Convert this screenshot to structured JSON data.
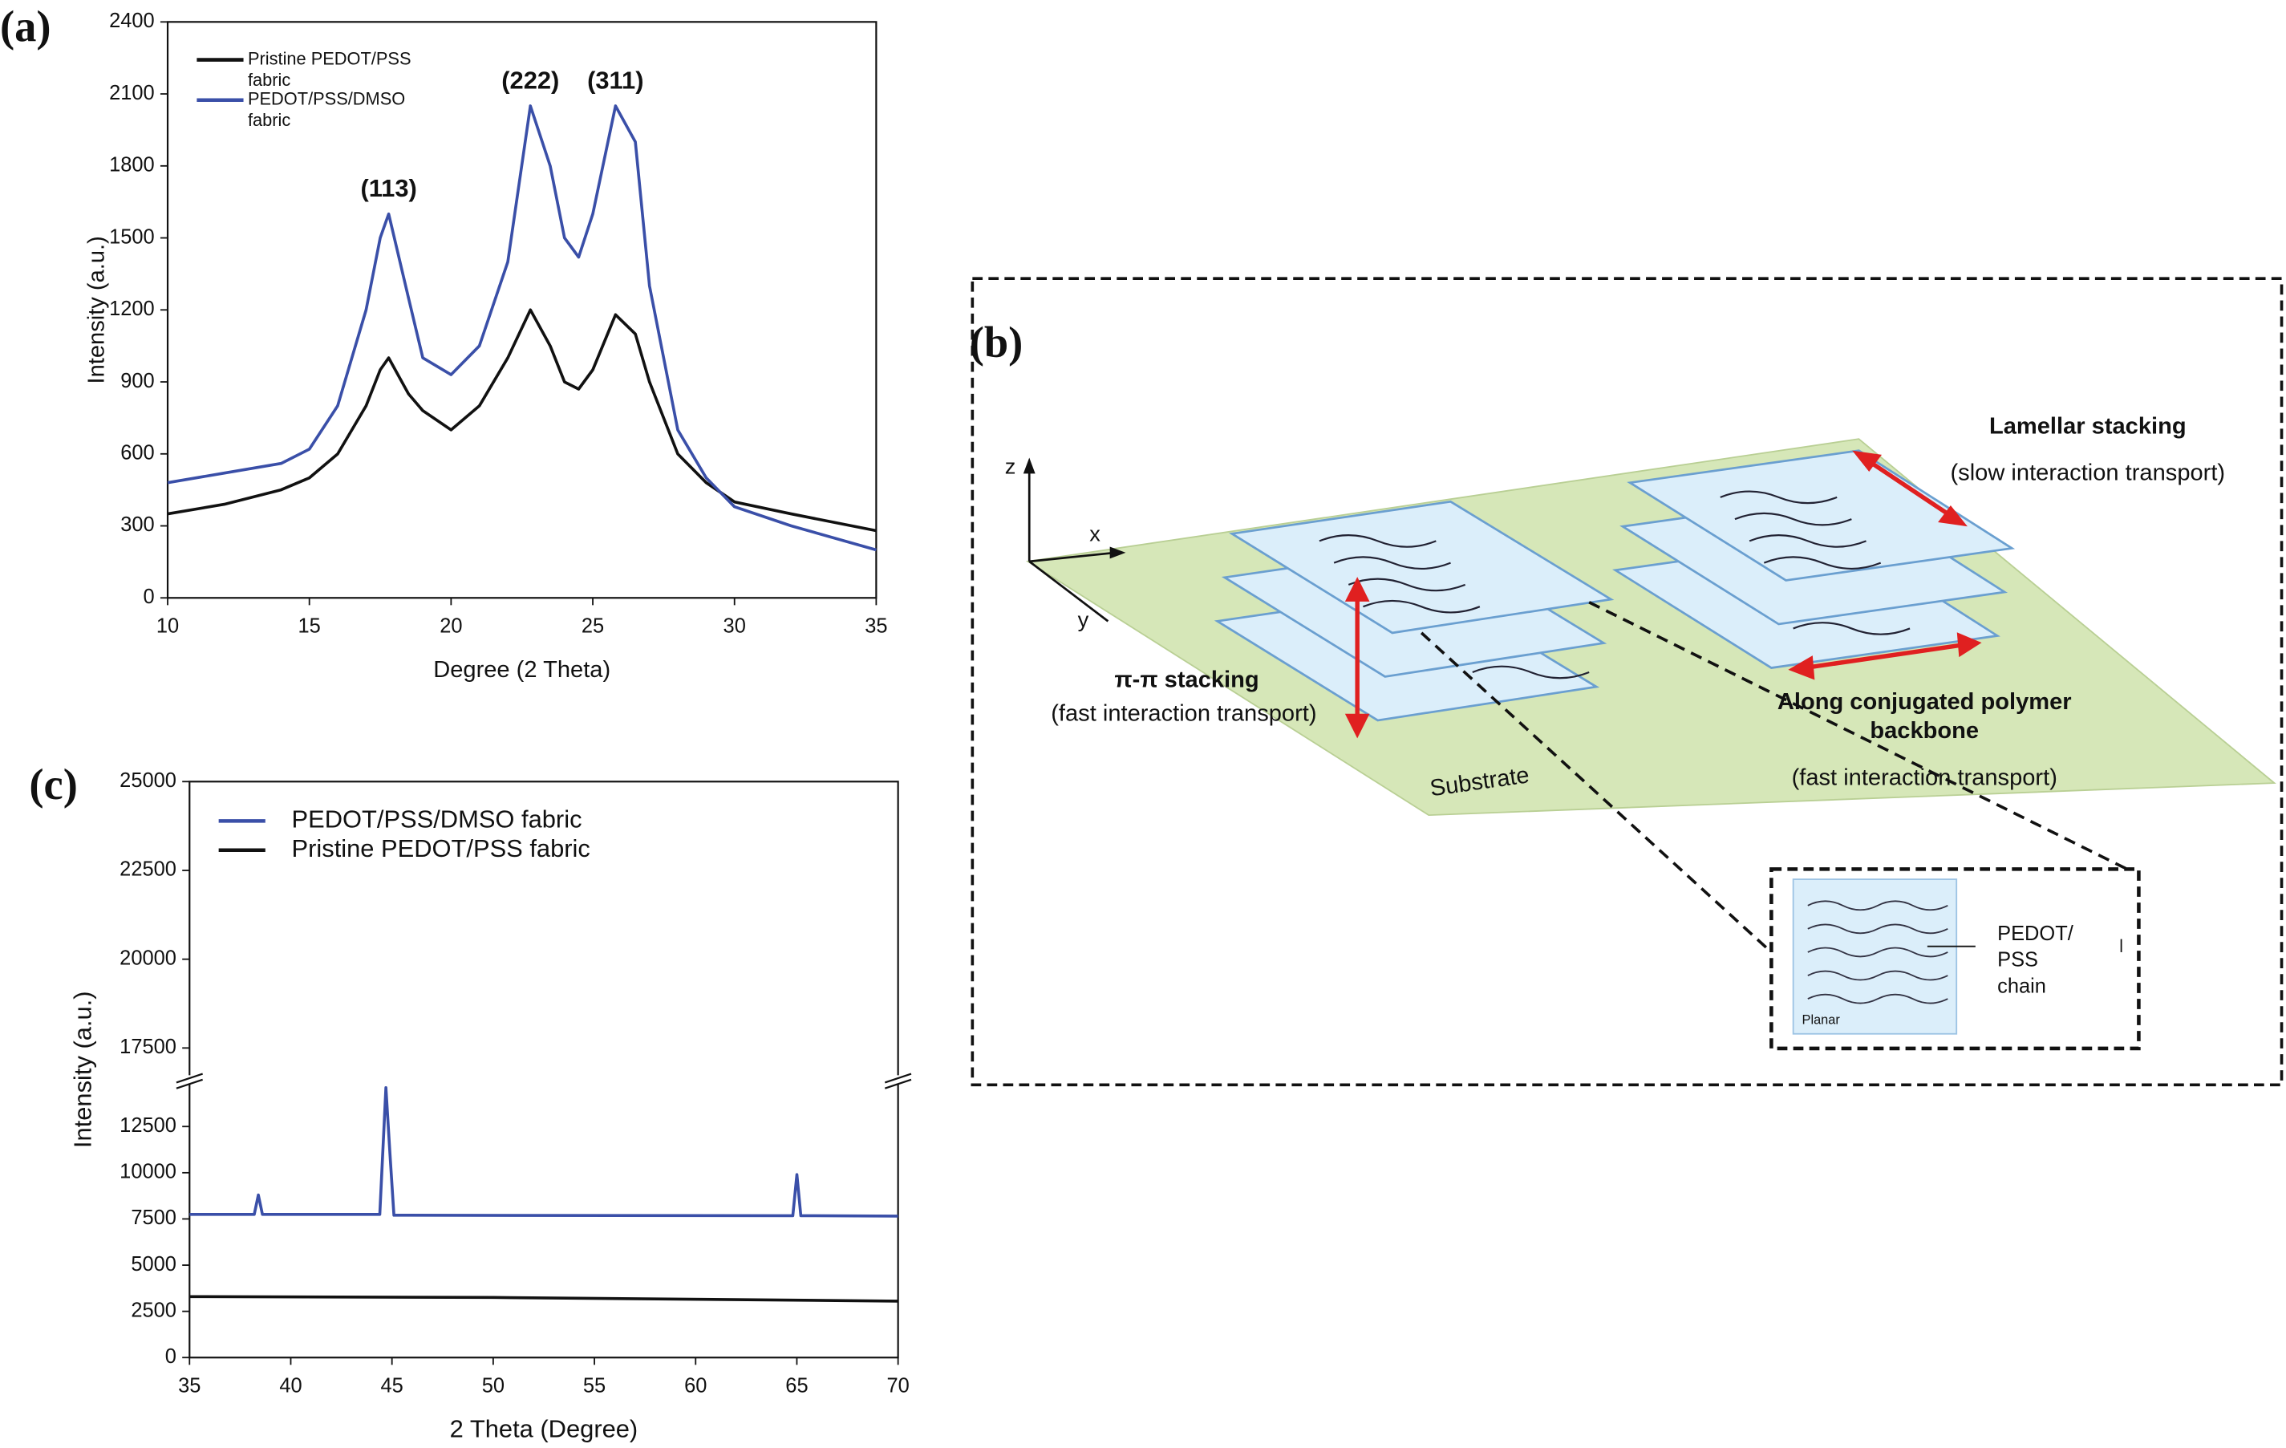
{
  "chart_data": [
    {
      "type": "line",
      "title": "(a)",
      "xlabel": "Degree (2 Theta)",
      "ylabel": "Intensity (a.u.)",
      "x": [
        10,
        12,
        14,
        15,
        16,
        17,
        17.5,
        17.8,
        18.5,
        19,
        20,
        21,
        22,
        22.8,
        23.5,
        24,
        24.5,
        25,
        25.8,
        26.5,
        27,
        28,
        29,
        30,
        32,
        35
      ],
      "series": [
        {
          "name": "Pristine PEDOT/PSS fabric",
          "color": "#111111",
          "values": [
            350,
            390,
            450,
            500,
            600,
            800,
            950,
            1000,
            850,
            780,
            700,
            800,
            1000,
            1200,
            1050,
            900,
            870,
            950,
            1180,
            1100,
            900,
            600,
            480,
            400,
            350,
            280
          ]
        },
        {
          "name": "PEDOT/PSS/DMSO fabric",
          "color": "#3a4fa8",
          "values": [
            480,
            520,
            560,
            620,
            800,
            1200,
            1500,
            1600,
            1250,
            1000,
            930,
            1050,
            1400,
            2050,
            1800,
            1500,
            1420,
            1600,
            2050,
            1900,
            1300,
            700,
            500,
            380,
            300,
            200
          ]
        }
      ],
      "annotations": [
        {
          "text": "(113)",
          "x": 17.8,
          "y": 1700
        },
        {
          "text": "(222)",
          "x": 22.8,
          "y": 2150
        },
        {
          "text": "(311)",
          "x": 25.8,
          "y": 2150
        }
      ],
      "xlim": [
        10,
        35
      ],
      "xticks": [
        10,
        15,
        20,
        25,
        30,
        35
      ],
      "ylim": [
        0,
        2400
      ],
      "yticks": [
        0,
        300,
        600,
        900,
        1200,
        1500,
        1800,
        2100,
        2400
      ]
    },
    {
      "type": "line",
      "title": "(c)",
      "xlabel": "2 Theta (Degree)",
      "ylabel": "Intensity (a.u.)",
      "series": [
        {
          "name": "PEDOT/PSS/DMSO fabric",
          "color": "#3a4fa8",
          "x": [
            35,
            38.2,
            38.4,
            38.6,
            44.4,
            44.7,
            44.9,
            45.1,
            64.8,
            65.0,
            65.2,
            70
          ],
          "values": [
            7750,
            7750,
            8800,
            7750,
            7750,
            14600,
            11000,
            7700,
            7680,
            9900,
            7680,
            7650
          ]
        },
        {
          "name": "Pristine PEDOT/PSS fabric",
          "color": "#111111",
          "x": [
            35,
            50,
            70
          ],
          "values": [
            3300,
            3250,
            3050
          ]
        }
      ],
      "xlim": [
        35,
        70
      ],
      "xticks": [
        35,
        40,
        45,
        50,
        55,
        60,
        65,
        70
      ],
      "ylim": [
        0,
        25000
      ],
      "ybreak": [
        14800,
        16650
      ],
      "yticks": [
        0,
        2500,
        5000,
        7500,
        10000,
        12500,
        17500,
        20000,
        22500,
        25000
      ]
    }
  ],
  "diagram": {
    "label": "(b)",
    "lamellar": "Lamellar stacking",
    "lamellar_note": "(slow interaction transport)",
    "axes": [
      "z",
      "x",
      "y"
    ],
    "pi": "π-π stacking",
    "pi_note": "(fast interaction transport)",
    "backbone": [
      "Along conjugated polymer",
      "backbone"
    ],
    "backbone_note": "(fast interaction transport)",
    "substrate": "Substrate",
    "chain": [
      "PEDOT/",
      "PSS",
      "chain"
    ],
    "planar": "Planar"
  }
}
